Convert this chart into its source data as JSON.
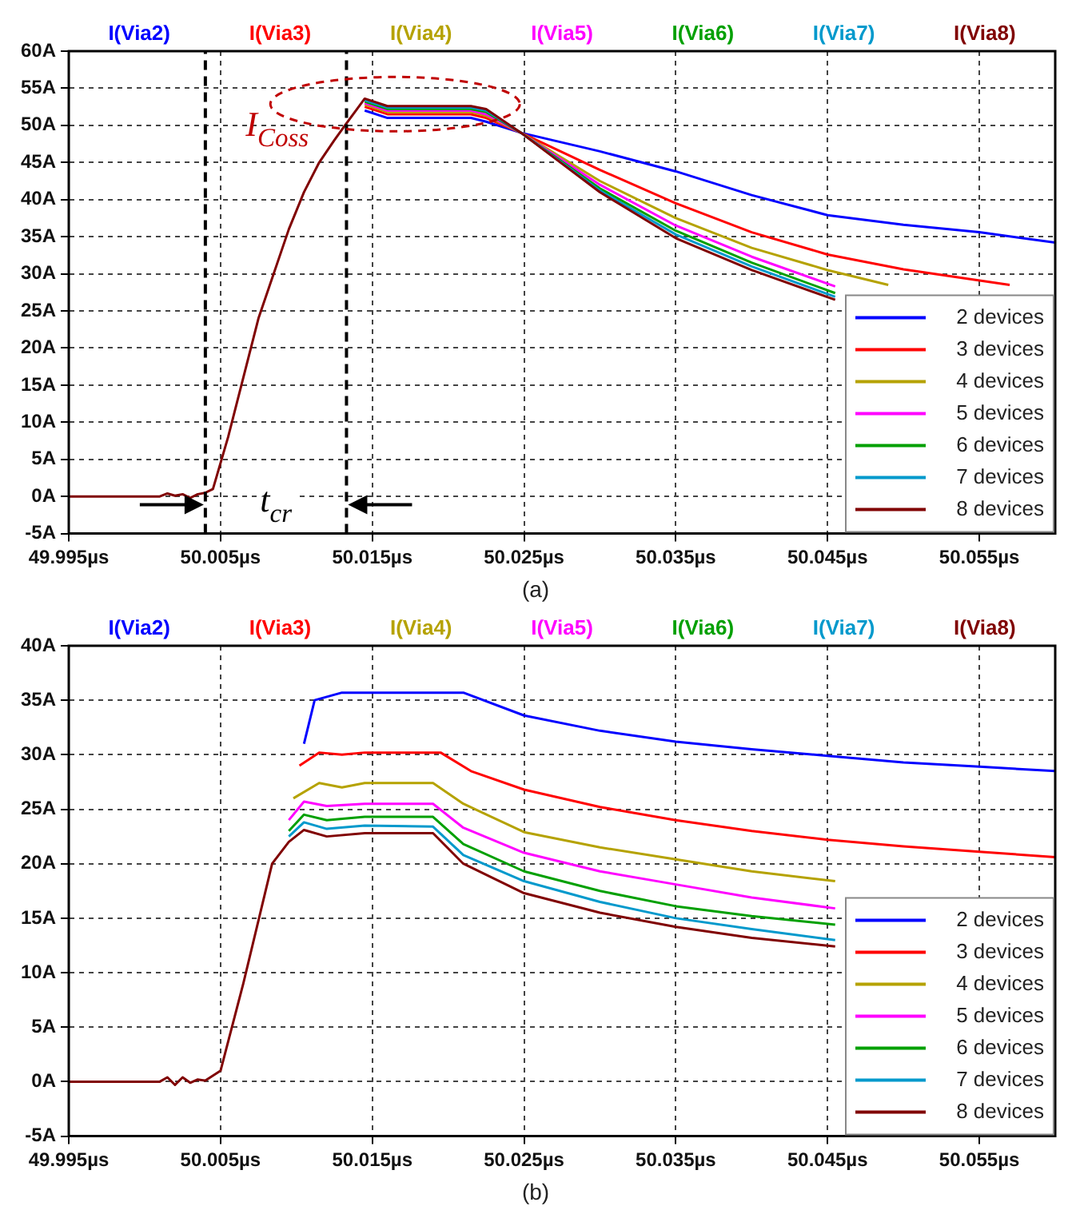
{
  "chart_data": [
    {
      "type": "line",
      "title": "(a)",
      "annotations": [
        "I(Via2)",
        "I(Via3)",
        "I(Via4)",
        "I(Via5)",
        "I(Via6)",
        "I(Via7)",
        "I(Via8)",
        {
          "text": "I$_{Coss}$",
          "x": 50.0165,
          "y": 52
        },
        "t$_{cr}$"
      ],
      "xlim": [
        49.995,
        50.06
      ],
      "ylim": [
        -5,
        60
      ],
      "xticks": [
        {
          "value": 49.995,
          "label": "49.995µs"
        },
        {
          "value": 50.005,
          "label": "50.005µs"
        },
        {
          "value": 50.015,
          "label": "50.015µs"
        },
        {
          "value": 50.025,
          "label": "50.025µs"
        },
        {
          "value": 50.035,
          "label": "50.035µs"
        },
        {
          "value": 50.045,
          "label": "50.045µs"
        },
        {
          "value": 50.055,
          "label": "50.055µs"
        }
      ],
      "yticks": [
        {
          "value": -5,
          "label": "-5A"
        },
        {
          "value": 0,
          "label": "0A"
        },
        {
          "value": 5,
          "label": "5A"
        },
        {
          "value": 10,
          "label": "10A"
        },
        {
          "value": 15,
          "label": "15A"
        },
        {
          "value": 20,
          "label": "20A"
        },
        {
          "value": 25,
          "label": "25A"
        },
        {
          "value": 30,
          "label": "30A"
        },
        {
          "value": 35,
          "label": "35A"
        },
        {
          "value": 40,
          "label": "40A"
        },
        {
          "value": 45,
          "label": "45A"
        },
        {
          "value": 50,
          "label": "50A"
        },
        {
          "value": 55,
          "label": "55A"
        },
        {
          "value": 60,
          "label": "60A"
        }
      ],
      "grid": true,
      "legend": "bottom right",
      "ref_lines": [
        {
          "axis": "x",
          "value": 50.004,
          "color": "#000000",
          "line_style": "dashed"
        },
        {
          "axis": "x",
          "value": 50.0133,
          "color": "#000000",
          "line_style": "dashed"
        }
      ],
      "series": [
        {
          "name": "2 devices",
          "color": "#0000ff",
          "x": [
            50.0145,
            50.016,
            50.0215,
            50.0225,
            50.0248,
            50.03,
            50.035,
            50.04,
            50.045,
            50.05,
            50.055,
            50.06
          ],
          "values": [
            52,
            51,
            51,
            50.5,
            49,
            46.5,
            43.8,
            40.6,
            37.9,
            36.6,
            35.6,
            34.2
          ]
        },
        {
          "name": "3 devices",
          "color": "#ff0000",
          "x": [
            50.0145,
            50.016,
            50.0215,
            50.0225,
            50.0248,
            50.03,
            50.035,
            50.04,
            50.045,
            50.05,
            50.057
          ],
          "values": [
            52.5,
            51.5,
            51.5,
            51,
            49,
            44,
            39.5,
            35.6,
            32.6,
            30.6,
            28.5
          ]
        },
        {
          "name": "4 devices",
          "color": "#b5a200",
          "x": [
            50.0145,
            50.016,
            50.0215,
            50.0225,
            50.0248,
            50.03,
            50.035,
            50.04,
            50.045,
            50.049
          ],
          "values": [
            52.8,
            51.8,
            51.8,
            51.3,
            49,
            42.5,
            37.5,
            33.5,
            30.5,
            28.5
          ]
        },
        {
          "name": "5 devices",
          "color": "#ff00ff",
          "x": [
            50.0145,
            50.016,
            50.0215,
            50.0225,
            50.0248,
            50.03,
            50.035,
            50.04,
            50.0455
          ],
          "values": [
            53,
            52,
            52,
            51.5,
            49,
            42,
            36.5,
            32.3,
            28.3
          ]
        },
        {
          "name": "6 devices",
          "color": "#00a000",
          "x": [
            50.0145,
            50.016,
            50.0215,
            50.0225,
            50.0248,
            50.03,
            50.035,
            50.04,
            50.0455
          ],
          "values": [
            53.2,
            52.2,
            52.2,
            51.8,
            49,
            41.5,
            35.8,
            31.5,
            27.4
          ]
        },
        {
          "name": "7 devices",
          "color": "#0099cc",
          "x": [
            50.0145,
            50.016,
            50.0215,
            50.0225,
            50.0248,
            50.03,
            50.035,
            50.04,
            50.0455
          ],
          "values": [
            53.4,
            52.4,
            52.4,
            52,
            49,
            41.2,
            35.3,
            31,
            26.9
          ]
        },
        {
          "name": "8 devices",
          "color": "#800000",
          "x": [
            49.995,
            50.001,
            50.0015,
            50.002,
            50.0025,
            50.003,
            50.0035,
            50.004,
            50.0045,
            50.0055,
            50.0075,
            50.0095,
            50.0105,
            50.0115,
            50.0125,
            50.0132,
            50.0145,
            50.016,
            50.0215,
            50.0225,
            50.0248,
            50.03,
            50.035,
            50.04,
            50.0455
          ],
          "values": [
            0,
            0,
            0.4,
            0.1,
            0.3,
            -0.2,
            0.3,
            0.5,
            1,
            8,
            24,
            36,
            41,
            45,
            48,
            50,
            53.6,
            52.6,
            52.6,
            52.2,
            49,
            41,
            34.8,
            30.5,
            26.5
          ]
        }
      ]
    },
    {
      "type": "line",
      "title": "(b)",
      "annotations": [
        "I(Via2)",
        "I(Via3)",
        "I(Via4)",
        "I(Via5)",
        "I(Via6)",
        "I(Via7)",
        "I(Via8)"
      ],
      "xlim": [
        49.995,
        50.06
      ],
      "ylim": [
        -5,
        40
      ],
      "xticks": [
        {
          "value": 49.995,
          "label": "49.995µs"
        },
        {
          "value": 50.005,
          "label": "50.005µs"
        },
        {
          "value": 50.015,
          "label": "50.015µs"
        },
        {
          "value": 50.025,
          "label": "50.025µs"
        },
        {
          "value": 50.035,
          "label": "50.035µs"
        },
        {
          "value": 50.045,
          "label": "50.045µs"
        },
        {
          "value": 50.055,
          "label": "50.055µs"
        }
      ],
      "yticks": [
        {
          "value": -5,
          "label": "-5A"
        },
        {
          "value": 0,
          "label": "0A"
        },
        {
          "value": 5,
          "label": "5A"
        },
        {
          "value": 10,
          "label": "10A"
        },
        {
          "value": 15,
          "label": "15A"
        },
        {
          "value": 20,
          "label": "20A"
        },
        {
          "value": 25,
          "label": "25A"
        },
        {
          "value": 30,
          "label": "30A"
        },
        {
          "value": 35,
          "label": "35A"
        },
        {
          "value": 40,
          "label": "40A"
        }
      ],
      "grid": true,
      "legend": "bottom right",
      "series": [
        {
          "name": "2 devices",
          "color": "#0000ff",
          "x": [
            50.0105,
            50.0112,
            50.013,
            50.021,
            50.025,
            50.03,
            50.035,
            50.04,
            50.045,
            50.05,
            50.055,
            50.06
          ],
          "values": [
            31,
            35,
            35.7,
            35.7,
            33.6,
            32.2,
            31.2,
            30.5,
            29.9,
            29.3,
            28.9,
            28.5
          ]
        },
        {
          "name": "3 devices",
          "color": "#ff0000",
          "x": [
            50.0102,
            50.0115,
            50.013,
            50.0145,
            50.0195,
            50.0215,
            50.025,
            50.03,
            50.035,
            50.04,
            50.045,
            50.05,
            50.055,
            50.06
          ],
          "values": [
            29,
            30.2,
            30,
            30.2,
            30.2,
            28.5,
            26.8,
            25.2,
            24,
            23,
            22.2,
            21.6,
            21.1,
            20.6
          ]
        },
        {
          "name": "4 devices",
          "color": "#b5a200",
          "x": [
            50.0098,
            50.0115,
            50.013,
            50.0145,
            50.019,
            50.021,
            50.025,
            50.03,
            50.035,
            50.04,
            50.0455
          ],
          "values": [
            26,
            27.4,
            27,
            27.4,
            27.4,
            25.5,
            22.9,
            21.5,
            20.4,
            19.3,
            18.4
          ]
        },
        {
          "name": "5 devices",
          "color": "#ff00ff",
          "x": [
            50.0095,
            50.0105,
            50.012,
            50.0145,
            50.019,
            50.021,
            50.025,
            50.03,
            50.035,
            50.04,
            50.0455
          ],
          "values": [
            24,
            25.7,
            25.3,
            25.5,
            25.5,
            23.3,
            21,
            19.3,
            18.1,
            16.9,
            15.9
          ]
        },
        {
          "name": "6 devices",
          "color": "#00a000",
          "x": [
            50.0095,
            50.0105,
            50.012,
            50.0145,
            50.019,
            50.021,
            50.025,
            50.03,
            50.035,
            50.04,
            50.0455
          ],
          "values": [
            23,
            24.5,
            24,
            24.3,
            24.3,
            21.8,
            19.3,
            17.5,
            16.1,
            15.2,
            14.4
          ]
        },
        {
          "name": "7 devices",
          "color": "#0099cc",
          "x": [
            50.0095,
            50.0105,
            50.012,
            50.0145,
            50.019,
            50.021,
            50.025,
            50.03,
            50.035,
            50.04,
            50.0455
          ],
          "values": [
            22.5,
            23.8,
            23.2,
            23.5,
            23.4,
            20.8,
            18.4,
            16.5,
            15,
            14,
            13
          ]
        },
        {
          "name": "8 devices",
          "color": "#800000",
          "x": [
            49.995,
            50.001,
            50.0015,
            50.002,
            50.0025,
            50.003,
            50.0035,
            50.004,
            50.005,
            50.0065,
            50.0084,
            50.0095,
            50.0105,
            50.012,
            50.0145,
            50.019,
            50.021,
            50.025,
            50.03,
            50.035,
            50.04,
            50.0455
          ],
          "values": [
            0,
            0,
            0.4,
            -0.3,
            0.4,
            -0.1,
            0.2,
            0.1,
            1,
            9,
            20,
            22,
            23.1,
            22.5,
            22.8,
            22.8,
            20,
            17.3,
            15.5,
            14.2,
            13.2,
            12.4
          ]
        }
      ]
    }
  ]
}
